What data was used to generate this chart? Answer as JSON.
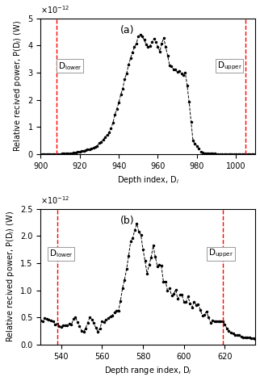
{
  "panel_a": {
    "xlim": [
      900,
      1010
    ],
    "ylim": [
      0,
      5
    ],
    "xticks": [
      900,
      920,
      940,
      960,
      980,
      1000
    ],
    "yticks": [
      0,
      1,
      2,
      3,
      4,
      5
    ],
    "xlabel": "Depth index, D$_i$",
    "ylabel": "Relative recived power, P(D$_i$) (W)",
    "label": "(a)",
    "vline_lower": 908,
    "vline_upper": 1005,
    "scale_exp": -12
  },
  "panel_b": {
    "xlim": [
      530,
      635
    ],
    "ylim": [
      0,
      2.5
    ],
    "xticks": [
      540,
      560,
      580,
      600,
      620
    ],
    "yticks": [
      0,
      0.5,
      1.0,
      1.5,
      2.0,
      2.5
    ],
    "xlabel": "Depth range index, D$_i$",
    "ylabel": "Relative recived power, P(D$_i$) (W)",
    "label": "(b)",
    "vline_lower": 538,
    "vline_upper": 619,
    "scale_exp": -12
  },
  "line_color": "#000000",
  "vline_color": "#ff0000",
  "marker": ".",
  "linestyle": "--",
  "markersize": 3.0,
  "linewidth": 0.7,
  "tick_fontsize": 7,
  "label_fontsize": 7,
  "panel_label_fontsize": 9
}
